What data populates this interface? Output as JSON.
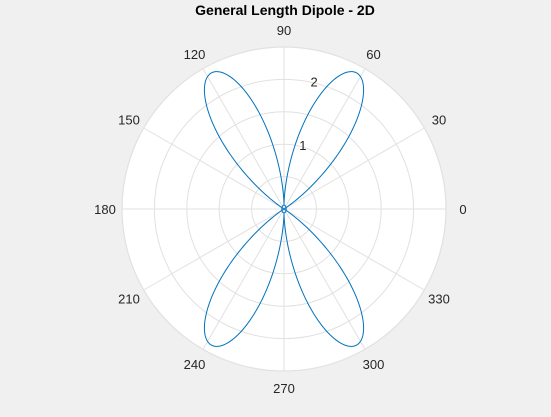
{
  "chart_data": {
    "type": "polar-line",
    "title": "General Length Dipole - 2D",
    "theta_ticks": [
      "0",
      "30",
      "60",
      "90",
      "120",
      "150",
      "180",
      "210",
      "240",
      "270",
      "300",
      "330"
    ],
    "theta_tick_values_deg": [
      0,
      30,
      60,
      90,
      120,
      150,
      180,
      210,
      240,
      270,
      300,
      330
    ],
    "r_ticks": [
      "1",
      "2"
    ],
    "r_tick_values": [
      1,
      2
    ],
    "rlim": [
      0,
      2.5
    ],
    "grid": true,
    "series": [
      {
        "color": "#0072bd",
        "lobes": [
          {
            "direction_deg": 62,
            "peak_r": 2.38
          },
          {
            "direction_deg": 118,
            "peak_r": 2.38
          },
          {
            "direction_deg": 242,
            "peak_r": 2.38
          },
          {
            "direction_deg": 298,
            "peak_r": 2.38
          }
        ],
        "lobe_half_width_deg": 30,
        "near_zero_r": 0.08
      }
    ],
    "colors": {
      "figure_background": "#f0f0f0",
      "axes_background": "#ffffff",
      "grid": "#e1e1e1",
      "axis_outline": "#e1e1e1"
    }
  }
}
